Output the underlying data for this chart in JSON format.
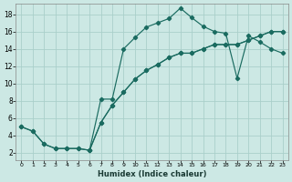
{
  "xlabel": "Humidex (Indice chaleur)",
  "background_color": "#cce8e4",
  "grid_color": "#aacfca",
  "line_color": "#1a6b60",
  "xlim": [
    -0.5,
    23.5
  ],
  "ylim": [
    1.2,
    19.2
  ],
  "xticks": [
    0,
    1,
    2,
    3,
    4,
    5,
    6,
    7,
    8,
    9,
    10,
    11,
    12,
    13,
    14,
    15,
    16,
    17,
    18,
    19,
    20,
    21,
    22,
    23
  ],
  "yticks": [
    2,
    4,
    6,
    8,
    10,
    12,
    14,
    16,
    18
  ],
  "curve1_x": [
    0,
    1,
    2,
    3,
    4,
    5,
    6,
    7,
    8,
    9,
    10,
    11,
    12,
    13,
    14,
    15,
    16,
    17,
    18,
    19,
    20,
    21,
    22,
    23
  ],
  "curve1_y": [
    5.0,
    4.5,
    3.0,
    2.5,
    2.5,
    2.5,
    2.3,
    8.2,
    8.2,
    14.0,
    15.3,
    16.5,
    17.0,
    17.5,
    18.7,
    17.6,
    16.6,
    16.0,
    15.8,
    10.6,
    15.5,
    14.8,
    14.0,
    13.5
  ],
  "curve2_x": [
    0,
    1,
    2,
    3,
    4,
    5,
    6,
    7,
    8,
    9,
    10,
    11,
    12,
    13,
    14,
    15,
    16,
    17,
    18,
    19,
    20,
    21,
    22,
    23
  ],
  "curve2_y": [
    5.0,
    4.5,
    3.0,
    2.5,
    2.5,
    2.5,
    2.3,
    5.5,
    7.5,
    9.0,
    10.5,
    11.5,
    12.2,
    13.0,
    13.5,
    13.5,
    14.0,
    14.5,
    14.5,
    14.5,
    15.0,
    15.5,
    16.0,
    16.0
  ],
  "curve3_x": [
    6,
    7,
    8,
    9,
    10,
    11,
    12,
    13,
    14,
    15,
    16,
    17,
    18,
    19,
    20,
    21,
    22,
    23
  ],
  "curve3_y": [
    2.3,
    5.5,
    7.5,
    9.0,
    10.5,
    11.5,
    12.2,
    13.0,
    13.5,
    13.5,
    14.0,
    14.5,
    14.5,
    14.5,
    15.0,
    15.5,
    16.0,
    16.0
  ]
}
